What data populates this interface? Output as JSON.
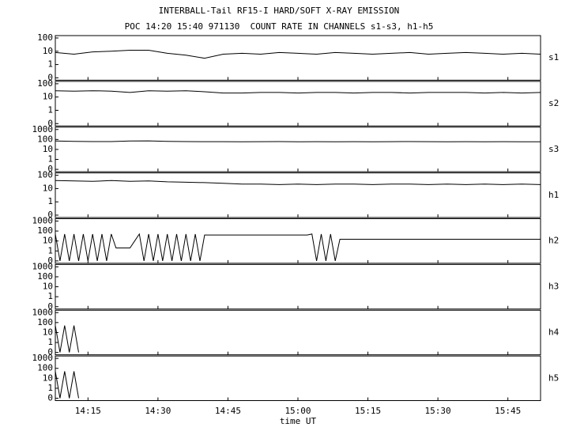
{
  "chart_data": {
    "type": "line",
    "title": "INTERBALL-Tail RF15-I HARD/SOFT X-RAY EMISSION",
    "subtitle": "POC 14:20 15:40 971130  COUNT RATE IN CHANNELS s1-s3, h1-h5",
    "x_label": "time UT",
    "yscale": "log",
    "color": "#000000",
    "xlim": [
      "14:08",
      "15:52"
    ],
    "xticks": [
      "14:15",
      "14:30",
      "14:45",
      "15:00",
      "15:15",
      "15:30",
      "15:45"
    ],
    "x": [
      "14:08",
      "14:12",
      "14:16",
      "14:20",
      "14:24",
      "14:28",
      "14:32",
      "14:36",
      "14:40",
      "14:44",
      "14:48",
      "14:52",
      "14:56",
      "15:00",
      "15:04",
      "15:08",
      "15:12",
      "15:16",
      "15:20",
      "15:24",
      "15:28",
      "15:32",
      "15:36",
      "15:40",
      "15:44",
      "15:48",
      "15:52"
    ],
    "series": [
      {
        "name": "s1",
        "ylim": [
          0,
          100
        ],
        "yticks": [
          0,
          1,
          10,
          100
        ],
        "values": [
          8,
          6,
          9,
          10,
          12,
          12,
          7,
          5,
          3,
          6,
          7,
          6,
          8,
          7,
          6,
          8,
          7,
          6,
          7,
          8,
          6,
          7,
          8,
          7,
          6,
          7,
          6
        ]
      },
      {
        "name": "s2",
        "ylim": [
          0,
          100
        ],
        "yticks": [
          0,
          1,
          10,
          100
        ],
        "values": [
          30,
          28,
          30,
          28,
          22,
          30,
          28,
          30,
          25,
          20,
          20,
          22,
          22,
          20,
          22,
          22,
          20,
          22,
          22,
          20,
          22,
          22,
          22,
          20,
          22,
          20,
          22
        ]
      },
      {
        "name": "s3",
        "ylim": [
          0,
          1000
        ],
        "yticks": [
          0,
          1,
          10,
          100,
          1000
        ],
        "values": [
          70,
          65,
          62,
          62,
          70,
          72,
          65,
          62,
          60,
          60,
          58,
          60,
          62,
          58,
          60,
          58,
          60,
          58,
          60,
          62,
          60,
          58,
          60,
          58,
          60,
          58,
          58
        ]
      },
      {
        "name": "h1",
        "ylim": [
          0,
          100
        ],
        "yticks": [
          0,
          1,
          10,
          100
        ],
        "values": [
          40,
          38,
          35,
          40,
          35,
          38,
          32,
          30,
          28,
          25,
          22,
          22,
          20,
          22,
          20,
          22,
          22,
          20,
          22,
          22,
          20,
          22,
          20,
          22,
          20,
          22,
          20
        ]
      },
      {
        "name": "h2",
        "ylim": [
          0,
          1000
        ],
        "yticks": [
          0,
          1,
          10,
          100,
          1000
        ],
        "x": [
          "14:08",
          "14:09",
          "14:10",
          "14:11",
          "14:12",
          "14:13",
          "14:14",
          "14:15",
          "14:16",
          "14:17",
          "14:18",
          "14:19",
          "14:20",
          "14:21",
          "14:24",
          "14:25",
          "14:26",
          "14:27",
          "14:28",
          "14:29",
          "14:30",
          "14:31",
          "14:32",
          "14:33",
          "14:34",
          "14:35",
          "14:36",
          "14:37",
          "14:38",
          "14:39",
          "14:40",
          "15:02",
          "15:03",
          "15:04",
          "15:05",
          "15:06",
          "15:07",
          "15:08",
          "15:09",
          "15:52"
        ],
        "values": [
          50,
          0,
          50,
          0,
          50,
          0,
          50,
          0,
          50,
          0,
          50,
          0,
          50,
          2,
          2,
          10,
          50,
          0,
          50,
          0,
          50,
          0,
          50,
          0,
          50,
          0,
          50,
          0,
          50,
          0,
          40,
          40,
          50,
          0,
          50,
          0,
          50,
          0,
          15,
          15
        ]
      },
      {
        "name": "h3",
        "ylim": [
          0,
          1000
        ],
        "yticks": [
          0,
          1,
          10,
          100,
          1000
        ],
        "x": [],
        "values": []
      },
      {
        "name": "h4",
        "ylim": [
          0,
          1000
        ],
        "yticks": [
          0,
          1,
          10,
          100,
          1000
        ],
        "x": [
          "14:08",
          "14:09",
          "14:10",
          "14:11",
          "14:12",
          "14:13"
        ],
        "values": [
          50,
          0,
          50,
          0,
          50,
          0
        ]
      },
      {
        "name": "h5",
        "ylim": [
          0,
          1000
        ],
        "yticks": [
          0,
          1,
          10,
          100,
          1000
        ],
        "x": [
          "14:08",
          "14:09",
          "14:10",
          "14:11",
          "14:12",
          "14:13"
        ],
        "values": [
          50,
          0,
          50,
          0,
          50,
          0
        ]
      }
    ]
  }
}
